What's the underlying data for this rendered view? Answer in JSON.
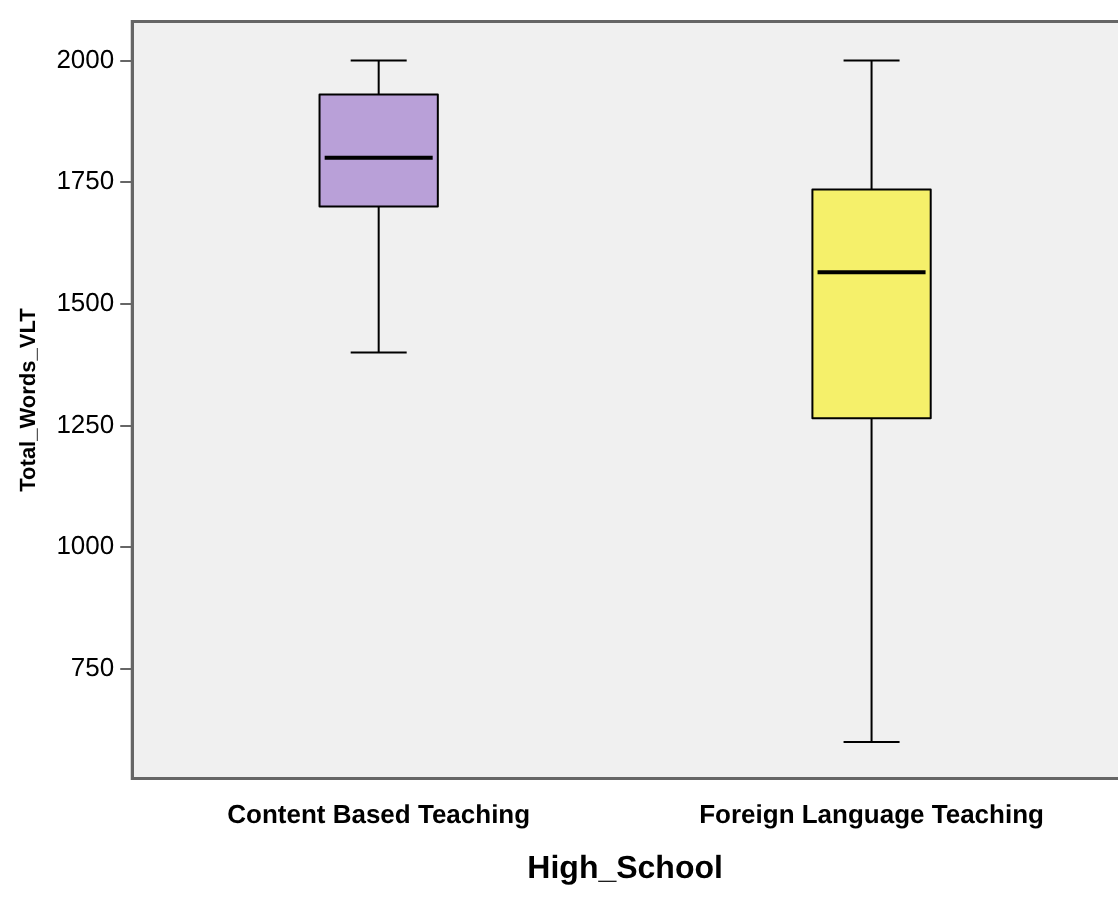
{
  "chart_data": {
    "type": "box",
    "xlabel": "High_School",
    "ylabel": "Total_Words_VLT",
    "categories": [
      "Content Based Teaching",
      "Foreign Language Teaching"
    ],
    "boxes": [
      {
        "low": 1400,
        "q1": 1700,
        "median": 1800,
        "q3": 1930,
        "high": 2000
      },
      {
        "low": 600,
        "q1": 1265,
        "median": 1565,
        "q3": 1735,
        "high": 2000
      }
    ],
    "colors": [
      "#b9a0d8",
      "#f5f06a"
    ],
    "ylim": [
      525,
      2080
    ],
    "yticks": [
      750,
      1000,
      1250,
      1500,
      1750,
      2000
    ],
    "grid": false,
    "legend": false
  }
}
